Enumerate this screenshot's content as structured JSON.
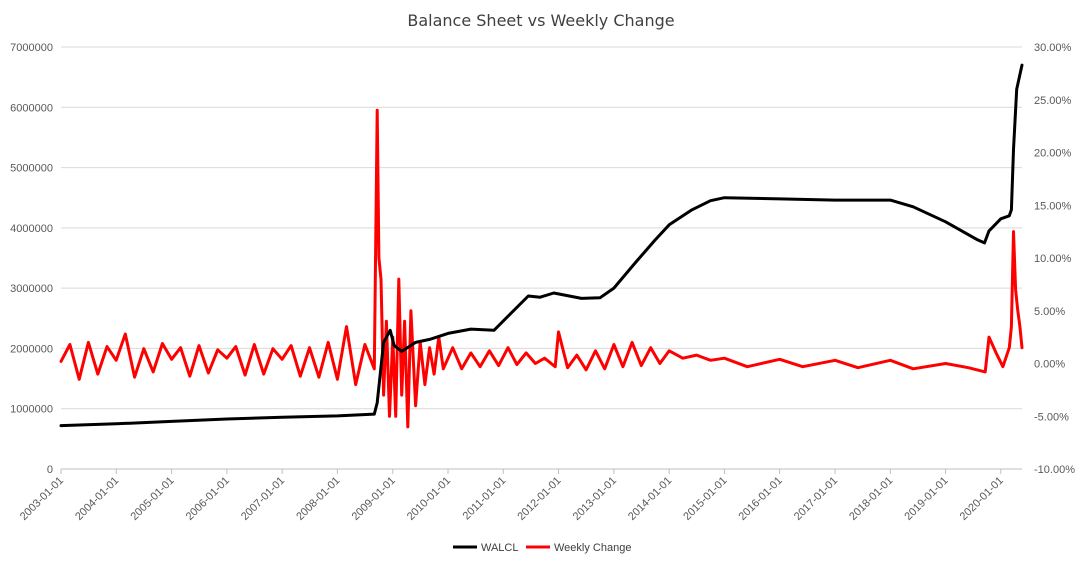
{
  "chart_data": {
    "type": "line",
    "title": "Balance Sheet vs Weekly Change",
    "xlabel": "",
    "ylabel": "",
    "y2label": "",
    "x_tick_labels": [
      "2003-01-01",
      "2004-01-01",
      "2005-01-01",
      "2006-01-01",
      "2007-01-01",
      "2008-01-01",
      "2009-01-01",
      "2010-01-01",
      "2011-01-01",
      "2012-01-01",
      "2013-01-01",
      "2014-01-01",
      "2015-01-01",
      "2016-01-01",
      "2017-01-01",
      "2018-01-01",
      "2019-01-01",
      "2020-01-01"
    ],
    "xlim": [
      "2003-01-01",
      "2020-05-20"
    ],
    "ylim": [
      0,
      7000000
    ],
    "y_tick_labels": [
      "0",
      "1000000",
      "2000000",
      "3000000",
      "4000000",
      "5000000",
      "6000000",
      "7000000"
    ],
    "y2lim": [
      -10,
      30
    ],
    "y2_tick_labels": [
      "-10.00%",
      "-5.00%",
      "0.00%",
      "5.00%",
      "10.00%",
      "15.00%",
      "20.00%",
      "25.00%",
      "30.00%"
    ],
    "legend_position": "bottom",
    "gridlines": "horizontal",
    "series": [
      {
        "name": "WALCL",
        "axis": "left",
        "color": "#000000",
        "x": [
          "2003-01-01",
          "2004-01-01",
          "2005-01-01",
          "2006-01-01",
          "2007-01-01",
          "2008-01-01",
          "2008-09-01",
          "2008-09-20",
          "2008-11-01",
          "2008-12-15",
          "2009-01-10",
          "2009-03-01",
          "2009-06-01",
          "2009-09-01",
          "2010-01-01",
          "2010-06-01",
          "2010-11-01",
          "2011-06-15",
          "2011-09-01",
          "2011-12-01",
          "2012-06-01",
          "2012-10-01",
          "2013-01-01",
          "2013-06-01",
          "2013-10-01",
          "2014-01-01",
          "2014-06-01",
          "2014-10-01",
          "2015-01-01",
          "2016-01-01",
          "2017-01-01",
          "2018-01-01",
          "2018-06-01",
          "2019-01-01",
          "2019-08-01",
          "2019-09-15",
          "2019-10-15",
          "2020-01-01",
          "2020-02-26",
          "2020-03-11",
          "2020-03-25",
          "2020-04-15",
          "2020-05-20"
        ],
        "values": [
          720000,
          750000,
          790000,
          830000,
          860000,
          880000,
          910000,
          1100000,
          2100000,
          2300000,
          2050000,
          1950000,
          2100000,
          2150000,
          2250000,
          2320000,
          2300000,
          2870000,
          2850000,
          2920000,
          2830000,
          2840000,
          3000000,
          3450000,
          3800000,
          4050000,
          4300000,
          4450000,
          4500000,
          4480000,
          4460000,
          4460000,
          4350000,
          4100000,
          3800000,
          3750000,
          3950000,
          4150000,
          4200000,
          4300000,
          5300000,
          6300000,
          6700000
        ]
      },
      {
        "name": "Weekly Change",
        "axis": "right",
        "color": "#ff0000",
        "x": [
          "2003-01-01",
          "2003-03-01",
          "2003-05-01",
          "2003-07-01",
          "2003-09-01",
          "2003-11-01",
          "2004-01-01",
          "2004-03-01",
          "2004-05-01",
          "2004-07-01",
          "2004-09-01",
          "2004-11-01",
          "2005-01-01",
          "2005-03-01",
          "2005-05-01",
          "2005-07-01",
          "2005-09-01",
          "2005-11-01",
          "2006-01-01",
          "2006-03-01",
          "2006-05-01",
          "2006-07-01",
          "2006-09-01",
          "2006-11-01",
          "2007-01-01",
          "2007-03-01",
          "2007-05-01",
          "2007-07-01",
          "2007-09-01",
          "2007-11-01",
          "2008-01-01",
          "2008-03-01",
          "2008-05-01",
          "2008-07-01",
          "2008-09-01",
          "2008-09-20",
          "2008-10-01",
          "2008-10-15",
          "2008-11-01",
          "2008-11-20",
          "2008-12-10",
          "2009-01-01",
          "2009-01-20",
          "2009-02-10",
          "2009-03-01",
          "2009-03-20",
          "2009-04-10",
          "2009-05-01",
          "2009-06-01",
          "2009-07-01",
          "2009-08-01",
          "2009-09-01",
          "2009-10-01",
          "2009-11-01",
          "2009-12-01",
          "2010-02-01",
          "2010-04-01",
          "2010-06-01",
          "2010-08-01",
          "2010-10-01",
          "2010-12-01",
          "2011-02-01",
          "2011-04-01",
          "2011-06-01",
          "2011-08-01",
          "2011-10-01",
          "2011-12-10",
          "2012-01-01",
          "2012-03-01",
          "2012-05-01",
          "2012-07-01",
          "2012-09-01",
          "2012-11-01",
          "2013-01-01",
          "2013-03-01",
          "2013-05-01",
          "2013-07-01",
          "2013-09-01",
          "2013-11-01",
          "2014-01-01",
          "2014-04-01",
          "2014-07-01",
          "2014-10-01",
          "2015-01-01",
          "2015-06-01",
          "2016-01-01",
          "2016-06-01",
          "2017-01-01",
          "2017-06-01",
          "2018-01-01",
          "2018-06-01",
          "2019-01-01",
          "2019-06-01",
          "2019-09-20",
          "2019-10-15",
          "2019-12-01",
          "2020-01-15",
          "2020-02-26",
          "2020-03-11",
          "2020-03-25",
          "2020-04-08",
          "2020-04-22",
          "2020-05-06",
          "2020-05-20"
        ],
        "values": [
          0.2,
          1.8,
          -1.5,
          2.0,
          -1.0,
          1.6,
          0.3,
          2.8,
          -1.3,
          1.4,
          -0.8,
          1.9,
          0.4,
          1.5,
          -1.2,
          1.7,
          -0.9,
          1.3,
          0.5,
          1.6,
          -1.1,
          1.8,
          -1.0,
          1.4,
          0.4,
          1.7,
          -1.2,
          1.5,
          -1.3,
          2.0,
          -1.5,
          3.5,
          -2.0,
          1.8,
          -0.5,
          24.0,
          10.0,
          8.0,
          -3.0,
          4.0,
          -5.0,
          2.5,
          -5.0,
          8.0,
          -3.0,
          4.0,
          -6.0,
          5.0,
          -4.0,
          2.0,
          -2.0,
          1.5,
          -1.0,
          2.5,
          -0.5,
          1.5,
          -0.5,
          1.0,
          -0.3,
          1.2,
          -0.2,
          1.5,
          -0.1,
          1.0,
          0.0,
          0.5,
          -0.3,
          3.0,
          -0.4,
          0.8,
          -0.6,
          1.2,
          -0.5,
          1.8,
          -0.3,
          2.0,
          -0.2,
          1.5,
          0.0,
          1.2,
          0.5,
          0.8,
          0.3,
          0.5,
          -0.3,
          0.4,
          -0.3,
          0.3,
          -0.4,
          0.3,
          -0.5,
          0.0,
          -0.4,
          -0.8,
          2.5,
          1.0,
          -0.3,
          1.5,
          3.5,
          12.5,
          7.0,
          5.0,
          3.5,
          1.5
        ]
      }
    ]
  }
}
